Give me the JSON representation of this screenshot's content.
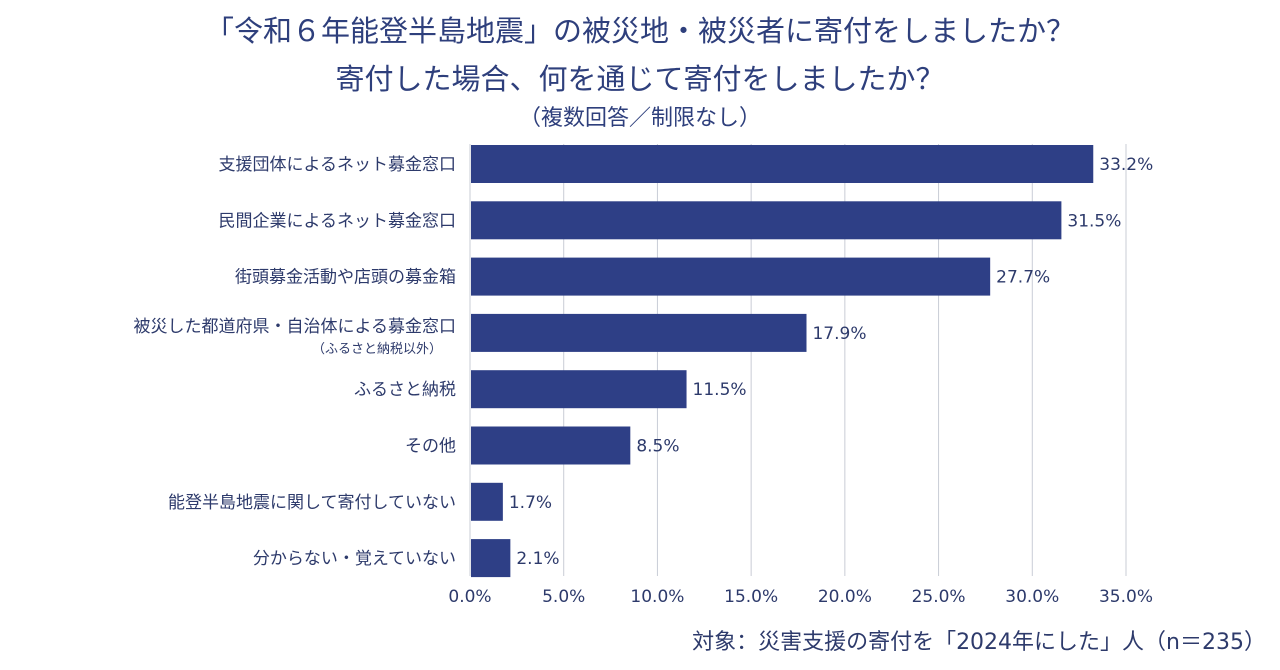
{
  "chart_data": {
    "type": "bar",
    "orientation": "horizontal",
    "title_line1": "「令和６年能登半島地震」の被災地・被災者に寄付をしましたか？",
    "title_line2": "寄付した場合、何を通じて寄付をしましたか？",
    "subtitle": "（複数回答／制限なし）",
    "categories": [
      {
        "label": "支援団体によるネット募金窓口",
        "sub": ""
      },
      {
        "label": "民間企業によるネット募金窓口",
        "sub": ""
      },
      {
        "label": "街頭募金活動や店頭の募金箱",
        "sub": ""
      },
      {
        "label": "被災した都道府県・自治体による募金窓口",
        "sub": "（ふるさと納税以外）"
      },
      {
        "label": "ふるさと納税",
        "sub": ""
      },
      {
        "label": "その他",
        "sub": ""
      },
      {
        "label": "能登半島地震に関して寄付していない",
        "sub": ""
      },
      {
        "label": "分からない・覚えていない",
        "sub": ""
      }
    ],
    "values": [
      33.2,
      31.5,
      27.7,
      17.9,
      11.5,
      8.5,
      1.7,
      2.1
    ],
    "value_labels": [
      "33.2%",
      "31.5%",
      "27.7%",
      "17.9%",
      "11.5%",
      "8.5%",
      "1.7%",
      "2.1%"
    ],
    "xlim": [
      0,
      35
    ],
    "xticks": [
      0,
      5,
      10,
      15,
      20,
      25,
      30,
      35
    ],
    "xtick_labels": [
      "0.0%",
      "5.0%",
      "10.0%",
      "15.0%",
      "20.0%",
      "25.0%",
      "30.0%",
      "35.0%"
    ],
    "grid": "vertical",
    "bar_color": "#2e3f86",
    "footnote": "対象：災害支援の寄付を「2024年にした」人（n＝235）"
  }
}
